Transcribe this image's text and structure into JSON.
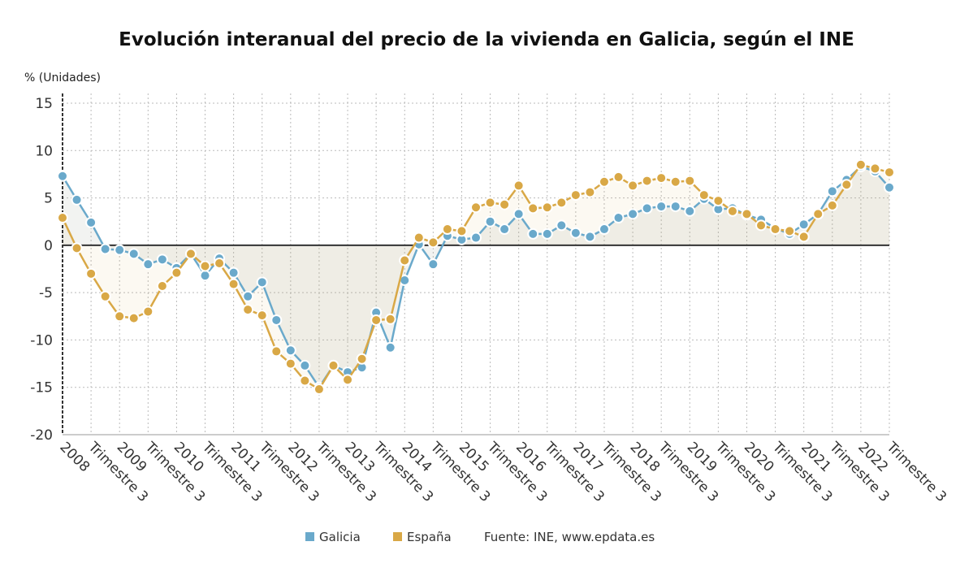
{
  "chart_data": {
    "type": "line",
    "title": "Evolución interanual del precio de la vivienda en Galicia, según el INE",
    "ylabel": "% (Unidades)",
    "xlabel": "",
    "ylim": [
      -20,
      15
    ],
    "yticks": [
      15,
      10,
      5,
      0,
      -5,
      -10,
      -15,
      -20
    ],
    "grid": true,
    "legend_position": "bottom",
    "x_tick_labels": [
      "2008",
      "Trimestre 3",
      "2009",
      "Trimestre 3",
      "2010",
      "Trimestre 3",
      "2011",
      "Trimestre 3",
      "2012",
      "Trimestre 3",
      "2013",
      "Trimestre 3",
      "2014",
      "Trimestre 3",
      "2015",
      "Trimestre 3",
      "2016",
      "Trimestre 3",
      "2017",
      "Trimestre 3",
      "2018",
      "Trimestre 3",
      "2019",
      "Trimestre 3",
      "2020",
      "Trimestre 3",
      "2021",
      "Trimestre 3",
      "2022",
      "Trimestre 3"
    ],
    "x": [
      "2008 T1",
      "2008 T2",
      "2008 T3",
      "2008 T4",
      "2009 T1",
      "2009 T2",
      "2009 T3",
      "2009 T4",
      "2010 T1",
      "2010 T2",
      "2010 T3",
      "2010 T4",
      "2011 T1",
      "2011 T2",
      "2011 T3",
      "2011 T4",
      "2012 T1",
      "2012 T2",
      "2012 T3",
      "2012 T4",
      "2013 T1",
      "2013 T2",
      "2013 T3",
      "2013 T4",
      "2014 T1",
      "2014 T2",
      "2014 T3",
      "2014 T4",
      "2015 T1",
      "2015 T2",
      "2015 T3",
      "2015 T4",
      "2016 T1",
      "2016 T2",
      "2016 T3",
      "2016 T4",
      "2017 T1",
      "2017 T2",
      "2017 T3",
      "2017 T4",
      "2018 T1",
      "2018 T2",
      "2018 T3",
      "2018 T4",
      "2019 T1",
      "2019 T2",
      "2019 T3",
      "2019 T4",
      "2020 T1",
      "2020 T2",
      "2020 T3",
      "2020 T4",
      "2021 T1",
      "2021 T2",
      "2021 T3",
      "2021 T4",
      "2022 T1",
      "2022 T2",
      "2022 T3"
    ],
    "series": [
      {
        "name": "Galicia",
        "color": "#6aa9cb",
        "values": [
          7.3,
          4.8,
          2.4,
          -0.4,
          -0.5,
          -0.9,
          -2.0,
          -1.5,
          -2.4,
          -0.9,
          -3.2,
          -1.4,
          -2.9,
          -5.4,
          -3.9,
          -7.9,
          -11.1,
          -12.7,
          -15.0,
          -12.7,
          -13.4,
          -12.9,
          -7.1,
          -10.8,
          -3.7,
          0.1,
          -2.0,
          1.0,
          0.6,
          0.8,
          2.5,
          1.7,
          3.3,
          1.2,
          1.2,
          2.1,
          1.3,
          0.9,
          1.7,
          2.9,
          3.3,
          3.9,
          4.1,
          4.1,
          3.6,
          4.9,
          3.8,
          3.9,
          3.2,
          2.7,
          1.8,
          1.2,
          2.2,
          3.3,
          5.7,
          6.9,
          8.3,
          7.8,
          6.1
        ]
      },
      {
        "name": "España",
        "color": "#d9a846",
        "values": [
          2.9,
          -0.3,
          -3.0,
          -5.4,
          -7.5,
          -7.7,
          -7.0,
          -4.3,
          -2.9,
          -0.9,
          -2.2,
          -1.9,
          -4.1,
          -6.8,
          -7.4,
          -11.2,
          -12.5,
          -14.3,
          -15.2,
          -12.7,
          -14.2,
          -12.0,
          -7.9,
          -7.8,
          -1.6,
          0.8,
          0.3,
          1.7,
          1.5,
          4.0,
          4.5,
          4.3,
          6.3,
          3.9,
          4.0,
          4.5,
          5.3,
          5.6,
          6.7,
          7.2,
          6.3,
          6.8,
          7.1,
          6.7,
          6.8,
          5.3,
          4.7,
          3.6,
          3.3,
          2.1,
          1.7,
          1.5,
          0.9,
          3.3,
          4.2,
          6.4,
          8.5,
          8.1,
          7.7
        ]
      }
    ],
    "source": "Fuente: INE, www.epdata.es"
  }
}
